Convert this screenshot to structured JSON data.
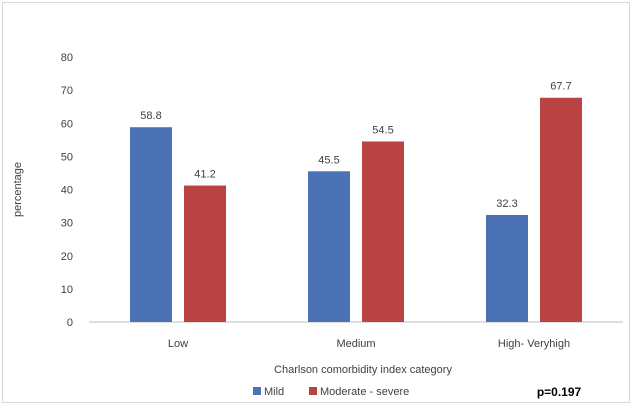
{
  "chart_data": {
    "type": "bar",
    "title": "",
    "xlabel": "Charlson comorbidity index category",
    "ylabel": "percentage",
    "ylim": [
      0,
      80
    ],
    "yticks": [
      0,
      10,
      20,
      30,
      40,
      50,
      60,
      70,
      80
    ],
    "categories": [
      "Low",
      "Medium",
      "High- Veryhigh"
    ],
    "series": [
      {
        "name": "Mild",
        "color": "#4a72b5",
        "values": [
          58.8,
          45.5,
          32.3
        ],
        "labels": [
          "58.8",
          "45.5",
          "32.3"
        ]
      },
      {
        "name": "Moderate - severe",
        "color": "#b94343",
        "values": [
          41.2,
          54.5,
          67.7
        ],
        "labels": [
          "41.2",
          "54.5",
          "67.7"
        ]
      }
    ],
    "grid": false,
    "legend_position": "bottom",
    "annotation": "p=0.197"
  }
}
